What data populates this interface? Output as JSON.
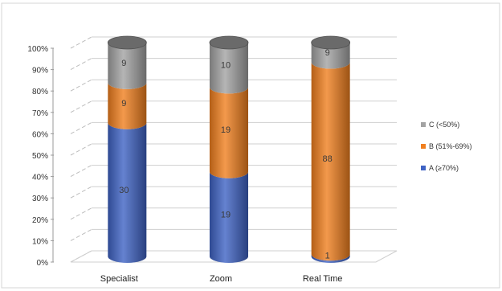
{
  "chart_data": {
    "type": "bar",
    "stacked": true,
    "percent_stacked": true,
    "style": "3d-cylinder",
    "categories": [
      "Specialist",
      "Zoom",
      "Real Time"
    ],
    "series": [
      {
        "name": "A (≥70%)",
        "values": [
          30,
          19,
          1
        ],
        "color": "#3f63c4"
      },
      {
        "name": "B (51%-69%)",
        "values": [
          9,
          19,
          88
        ],
        "color": "#f07f1f"
      },
      {
        "name": "C (<50%)",
        "values": [
          9,
          10,
          9
        ],
        "color": "#a3a3a3"
      }
    ],
    "data_labels": [
      [
        "30",
        "19",
        "1"
      ],
      [
        "9",
        "19",
        "88"
      ],
      [
        "9",
        "10",
        "9"
      ]
    ],
    "y_ticks": [
      "0%",
      "10%",
      "20%",
      "30%",
      "40%",
      "50%",
      "60%",
      "70%",
      "80%",
      "90%",
      "100%"
    ],
    "ylim": [
      0,
      100
    ],
    "grid": true,
    "legend_position": "right",
    "legend_order": [
      "C (<50%)",
      "B (51%-69%)",
      "A (≥70%)"
    ]
  }
}
